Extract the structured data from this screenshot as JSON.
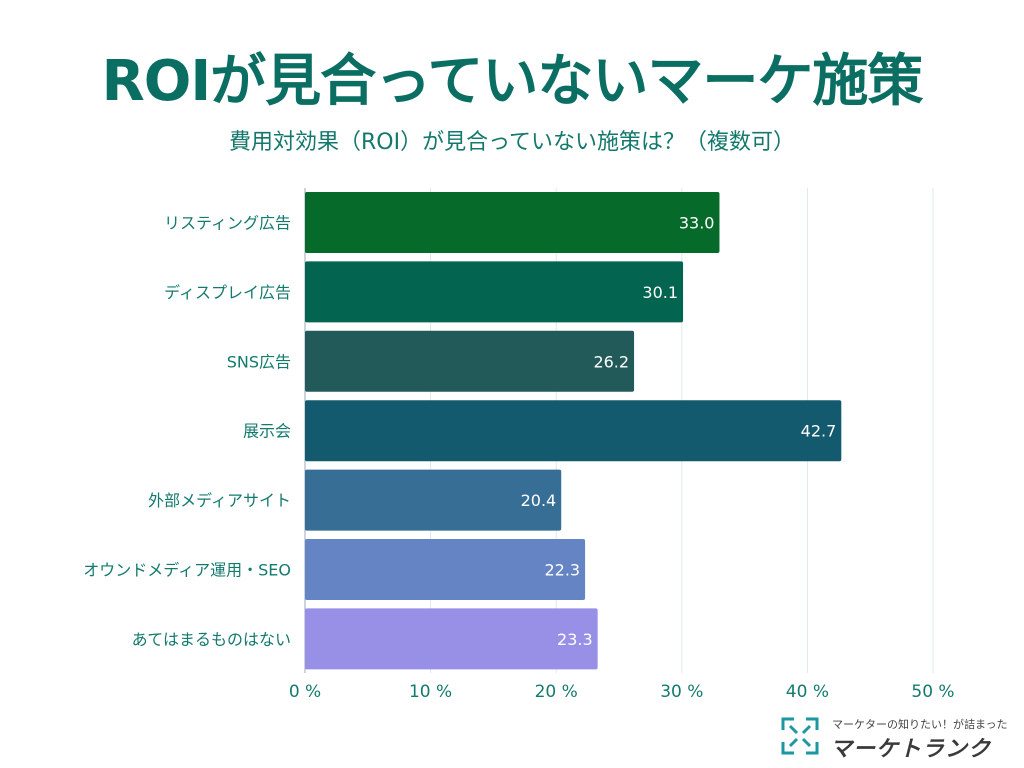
{
  "chart_data": {
    "type": "bar",
    "orientation": "horizontal",
    "title": "ROIが見合っていないマーケ施策",
    "subtitle": "費用対効果（ROI）が見合っていない施策は？（複数可）",
    "categories": [
      "リスティング広告",
      "ディスプレイ広告",
      "SNS広告",
      "展示会",
      "外部メディアサイト",
      "オウンドメディア運用・SEO",
      "あてはまるものはない"
    ],
    "values": [
      33.0,
      30.1,
      26.2,
      42.7,
      20.4,
      22.3,
      23.3
    ],
    "value_labels": [
      "33.0",
      "30.1",
      "26.2",
      "42.7",
      "20.4",
      "22.3",
      "23.3"
    ],
    "colors": [
      "#066a2a",
      "#036450",
      "#225a5a",
      "#135a6e",
      "#376e96",
      "#6484c4",
      "#9890e6"
    ],
    "xlim": [
      0,
      50
    ],
    "xticks": [
      0,
      10,
      20,
      30,
      40,
      50
    ],
    "xtick_labels": [
      "0 %",
      "10 %",
      "20 %",
      "30 %",
      "40 %",
      "50 %"
    ],
    "grid": true,
    "xlabel": "",
    "ylabel": ""
  },
  "logo": {
    "tagline": "マーケターの知りたい！が詰まった",
    "name": "マーケトランク"
  }
}
